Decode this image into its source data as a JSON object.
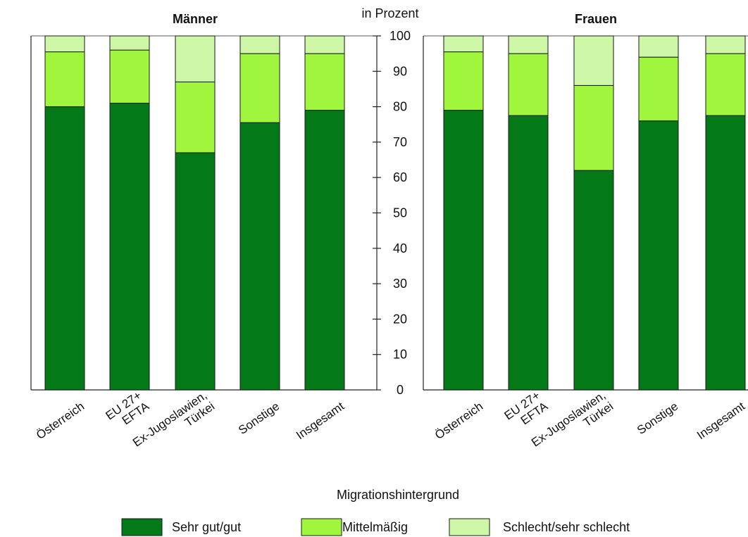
{
  "chart_data": {
    "type": "bar",
    "stacked": true,
    "ylabel": "in Prozent",
    "xlabel": "Migrationshintergrund",
    "ylim": [
      0,
      100
    ],
    "yticks": [
      "0",
      "10",
      "20",
      "30",
      "40",
      "50",
      "60",
      "70",
      "80",
      "90",
      "100"
    ],
    "legend_position": "bottom",
    "categories": [
      [
        "Österreich"
      ],
      [
        "EU 27+",
        "EFTA"
      ],
      [
        "Ex-Jugoslawien,",
        "Türkei"
      ],
      [
        "Sonstige"
      ],
      [
        "Insgesamt"
      ]
    ],
    "series_names": [
      "Sehr gut/gut",
      "Mittelmäßig",
      "Schlecht/sehr schlecht"
    ],
    "colors": [
      "#037a17",
      "#a0f53d",
      "#cdf7a6"
    ],
    "panels": [
      {
        "title": "Männer",
        "series": [
          {
            "name": "Sehr gut/gut",
            "values": [
              80,
              81,
              67,
              75.5,
              79
            ]
          },
          {
            "name": "Mittelmäßig",
            "values": [
              15.5,
              15,
              20,
              19.5,
              16
            ]
          },
          {
            "name": "Schlecht/sehr schlecht",
            "values": [
              4.5,
              4,
              13,
              5,
              5
            ]
          }
        ]
      },
      {
        "title": "Frauen",
        "series": [
          {
            "name": "Sehr gut/gut",
            "values": [
              79,
              77.5,
              62,
              76,
              77.5
            ]
          },
          {
            "name": "Mittelmäßig",
            "values": [
              16.5,
              17.5,
              24,
              18,
              17.5
            ]
          },
          {
            "name": "Schlecht/sehr schlecht",
            "values": [
              4.5,
              5,
              14,
              6,
              5
            ]
          }
        ]
      }
    ]
  }
}
